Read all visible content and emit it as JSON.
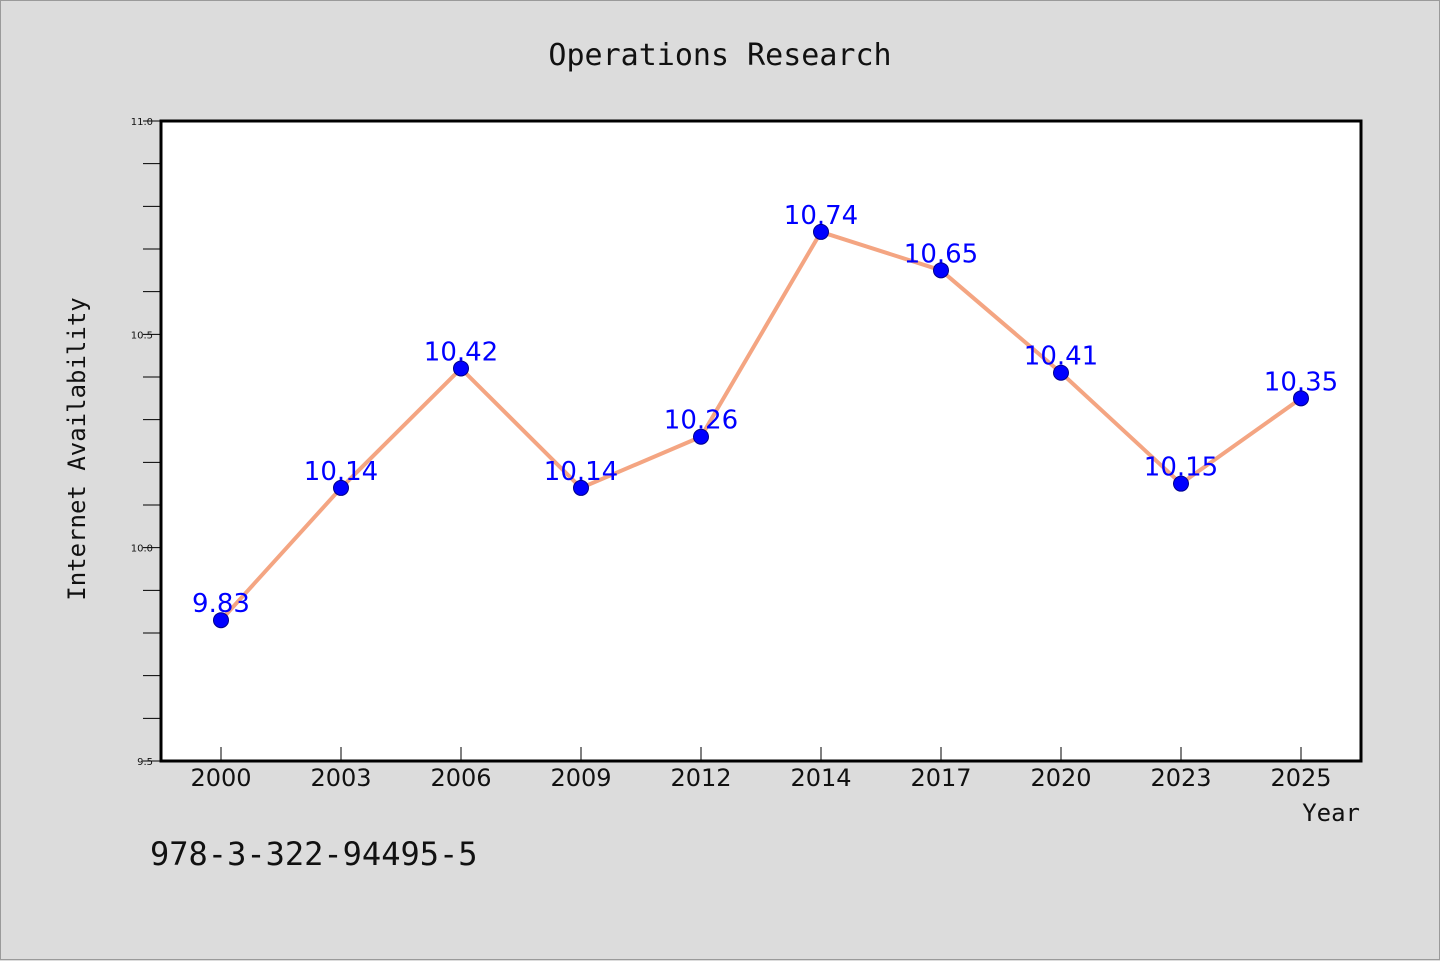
{
  "chart_data": {
    "type": "line",
    "title": "Operations Research",
    "xlabel": "Year",
    "ylabel": "Internet Availability",
    "categories": [
      "2000",
      "2003",
      "2006",
      "2009",
      "2012",
      "2014",
      "2017",
      "2020",
      "2023",
      "2025"
    ],
    "series": [
      {
        "values": [
          9.83,
          10.14,
          10.42,
          10.14,
          10.26,
          10.74,
          10.65,
          10.41,
          10.15,
          10.35
        ],
        "labels": [
          "9.83",
          "10.14",
          "10.42",
          "10.14",
          "10.26",
          "10.74",
          "10.65",
          "10.41",
          "10.15",
          "10.35"
        ],
        "line_color": "#f4a582",
        "marker_color": "#0000ff",
        "label_color": "#0000ff"
      }
    ],
    "ylim": [
      9.5,
      11.0
    ],
    "yticks": [
      "9.5",
      "10.0",
      "10.5",
      "11.0"
    ],
    "grid": false,
    "legend": "none"
  },
  "footer": {
    "isbn": "978-3-322-94495-5"
  }
}
